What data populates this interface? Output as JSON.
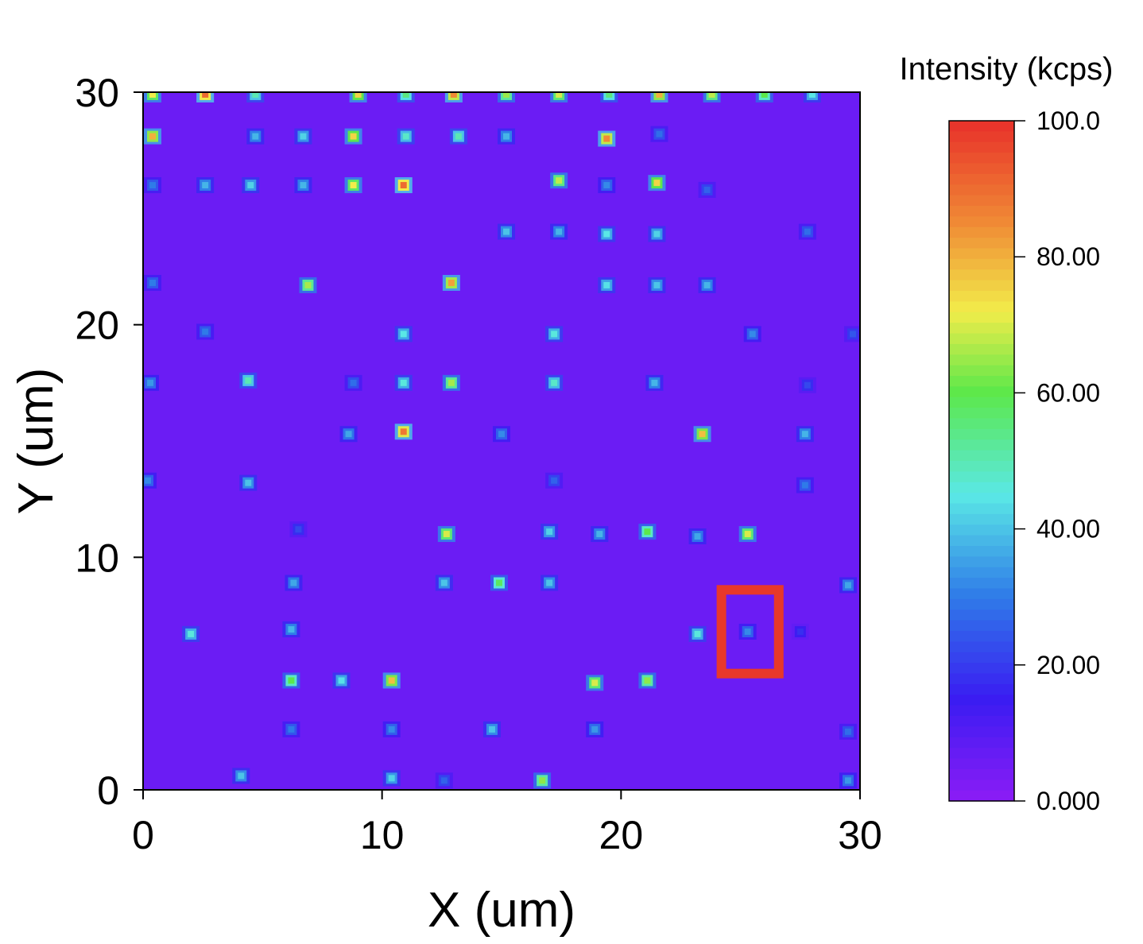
{
  "chart_data": {
    "type": "heatmap",
    "title": "",
    "xlabel": "X (um)",
    "ylabel": "Y (um)",
    "xlim": [
      0,
      30
    ],
    "ylim": [
      0,
      30
    ],
    "x_ticks": [
      0,
      10,
      20,
      30
    ],
    "y_ticks": [
      0,
      10,
      20,
      30
    ],
    "background_intensity": 6,
    "colorbar": {
      "label": "Intensity (kcps)",
      "range": [
        0,
        100
      ],
      "ticks": [
        {
          "value": 100,
          "label": "100.0"
        },
        {
          "value": 80,
          "label": "80.00"
        },
        {
          "value": 60,
          "label": "60.00"
        },
        {
          "value": 40,
          "label": "40.00"
        },
        {
          "value": 20,
          "label": "20.00"
        },
        {
          "value": 0,
          "label": "0.000"
        }
      ],
      "stops": [
        {
          "value": 0,
          "color": "#8c1cf5"
        },
        {
          "value": 15,
          "color": "#3a1cf2"
        },
        {
          "value": 30,
          "color": "#2f7be8"
        },
        {
          "value": 45,
          "color": "#5ae8e6"
        },
        {
          "value": 60,
          "color": "#5ce84a"
        },
        {
          "value": 72,
          "color": "#f2ec4a"
        },
        {
          "value": 85,
          "color": "#f08a35"
        },
        {
          "value": 100,
          "color": "#e8302a"
        }
      ]
    },
    "highlight_box": {
      "x": [
        24.2,
        26.6
      ],
      "y": [
        5.0,
        8.6
      ],
      "color": "#e8382a"
    },
    "spots": [
      {
        "x": 0.4,
        "y": 29.9,
        "v": 72
      },
      {
        "x": 2.6,
        "y": 29.9,
        "v": 90
      },
      {
        "x": 4.7,
        "y": 29.9,
        "v": 50
      },
      {
        "x": 9.0,
        "y": 29.9,
        "v": 75
      },
      {
        "x": 11.0,
        "y": 29.9,
        "v": 55
      },
      {
        "x": 13.0,
        "y": 29.9,
        "v": 85
      },
      {
        "x": 15.2,
        "y": 29.9,
        "v": 65
      },
      {
        "x": 17.4,
        "y": 29.9,
        "v": 70
      },
      {
        "x": 19.5,
        "y": 29.9,
        "v": 55
      },
      {
        "x": 21.6,
        "y": 29.9,
        "v": 80
      },
      {
        "x": 23.8,
        "y": 29.9,
        "v": 68
      },
      {
        "x": 26.0,
        "y": 29.9,
        "v": 60
      },
      {
        "x": 28.0,
        "y": 29.9,
        "v": 45
      },
      {
        "x": 0.4,
        "y": 28.1,
        "v": 80
      },
      {
        "x": 4.7,
        "y": 28.1,
        "v": 38
      },
      {
        "x": 6.7,
        "y": 28.1,
        "v": 42
      },
      {
        "x": 8.8,
        "y": 28.1,
        "v": 75
      },
      {
        "x": 11.0,
        "y": 28.1,
        "v": 48
      },
      {
        "x": 13.2,
        "y": 28.1,
        "v": 50
      },
      {
        "x": 15.2,
        "y": 28.1,
        "v": 38
      },
      {
        "x": 19.4,
        "y": 28.0,
        "v": 85
      },
      {
        "x": 21.6,
        "y": 28.2,
        "v": 28
      },
      {
        "x": 0.4,
        "y": 26.0,
        "v": 30
      },
      {
        "x": 2.6,
        "y": 26.0,
        "v": 38
      },
      {
        "x": 4.5,
        "y": 26.0,
        "v": 42
      },
      {
        "x": 6.7,
        "y": 26.0,
        "v": 38
      },
      {
        "x": 8.8,
        "y": 26.0,
        "v": 72
      },
      {
        "x": 10.9,
        "y": 26.0,
        "v": 90
      },
      {
        "x": 17.4,
        "y": 26.2,
        "v": 68
      },
      {
        "x": 19.4,
        "y": 26.0,
        "v": 32
      },
      {
        "x": 21.5,
        "y": 26.1,
        "v": 75
      },
      {
        "x": 23.6,
        "y": 25.8,
        "v": 26
      },
      {
        "x": 15.2,
        "y": 24.0,
        "v": 40
      },
      {
        "x": 17.4,
        "y": 24.0,
        "v": 38
      },
      {
        "x": 19.4,
        "y": 23.9,
        "v": 45
      },
      {
        "x": 21.5,
        "y": 23.9,
        "v": 42
      },
      {
        "x": 27.8,
        "y": 24.0,
        "v": 28
      },
      {
        "x": 0.4,
        "y": 21.8,
        "v": 30
      },
      {
        "x": 6.9,
        "y": 21.7,
        "v": 66
      },
      {
        "x": 12.9,
        "y": 21.8,
        "v": 82
      },
      {
        "x": 19.4,
        "y": 21.7,
        "v": 44
      },
      {
        "x": 21.5,
        "y": 21.7,
        "v": 40
      },
      {
        "x": 23.6,
        "y": 21.7,
        "v": 38
      },
      {
        "x": 2.6,
        "y": 19.7,
        "v": 30
      },
      {
        "x": 10.9,
        "y": 19.6,
        "v": 45
      },
      {
        "x": 17.2,
        "y": 19.6,
        "v": 46
      },
      {
        "x": 25.5,
        "y": 19.6,
        "v": 32
      },
      {
        "x": 29.7,
        "y": 19.6,
        "v": 24
      },
      {
        "x": 0.3,
        "y": 17.5,
        "v": 34
      },
      {
        "x": 4.4,
        "y": 17.6,
        "v": 50
      },
      {
        "x": 8.8,
        "y": 17.5,
        "v": 28
      },
      {
        "x": 10.9,
        "y": 17.5,
        "v": 46
      },
      {
        "x": 12.9,
        "y": 17.5,
        "v": 66
      },
      {
        "x": 17.2,
        "y": 17.5,
        "v": 48
      },
      {
        "x": 21.4,
        "y": 17.5,
        "v": 38
      },
      {
        "x": 27.8,
        "y": 17.4,
        "v": 22
      },
      {
        "x": 8.6,
        "y": 15.3,
        "v": 36
      },
      {
        "x": 10.9,
        "y": 15.4,
        "v": 88
      },
      {
        "x": 15.0,
        "y": 15.3,
        "v": 32
      },
      {
        "x": 23.4,
        "y": 15.3,
        "v": 78
      },
      {
        "x": 27.7,
        "y": 15.3,
        "v": 38
      },
      {
        "x": 0.2,
        "y": 13.3,
        "v": 32
      },
      {
        "x": 4.4,
        "y": 13.2,
        "v": 40
      },
      {
        "x": 17.2,
        "y": 13.3,
        "v": 26
      },
      {
        "x": 27.7,
        "y": 13.1,
        "v": 30
      },
      {
        "x": 6.5,
        "y": 11.2,
        "v": 22
      },
      {
        "x": 12.7,
        "y": 11.0,
        "v": 70
      },
      {
        "x": 17.0,
        "y": 11.1,
        "v": 42
      },
      {
        "x": 19.1,
        "y": 11.0,
        "v": 38
      },
      {
        "x": 21.1,
        "y": 11.1,
        "v": 60
      },
      {
        "x": 23.2,
        "y": 10.9,
        "v": 36
      },
      {
        "x": 25.3,
        "y": 11.0,
        "v": 70
      },
      {
        "x": 6.3,
        "y": 8.9,
        "v": 36
      },
      {
        "x": 12.6,
        "y": 8.9,
        "v": 40
      },
      {
        "x": 14.9,
        "y": 8.9,
        "v": 58
      },
      {
        "x": 17.0,
        "y": 8.9,
        "v": 40
      },
      {
        "x": 29.5,
        "y": 8.8,
        "v": 36
      },
      {
        "x": 2.0,
        "y": 6.7,
        "v": 46
      },
      {
        "x": 6.2,
        "y": 6.9,
        "v": 38
      },
      {
        "x": 23.2,
        "y": 6.7,
        "v": 46
      },
      {
        "x": 25.3,
        "y": 6.8,
        "v": 32
      },
      {
        "x": 27.5,
        "y": 6.8,
        "v": 18
      },
      {
        "x": 6.2,
        "y": 4.7,
        "v": 60
      },
      {
        "x": 8.3,
        "y": 4.7,
        "v": 44
      },
      {
        "x": 10.4,
        "y": 4.7,
        "v": 78
      },
      {
        "x": 18.9,
        "y": 4.6,
        "v": 70
      },
      {
        "x": 21.1,
        "y": 4.7,
        "v": 64
      },
      {
        "x": 6.2,
        "y": 2.6,
        "v": 30
      },
      {
        "x": 10.4,
        "y": 2.6,
        "v": 32
      },
      {
        "x": 14.6,
        "y": 2.6,
        "v": 40
      },
      {
        "x": 18.9,
        "y": 2.6,
        "v": 34
      },
      {
        "x": 29.5,
        "y": 2.5,
        "v": 28
      },
      {
        "x": 4.1,
        "y": 0.6,
        "v": 40
      },
      {
        "x": 10.4,
        "y": 0.5,
        "v": 42
      },
      {
        "x": 12.6,
        "y": 0.4,
        "v": 26
      },
      {
        "x": 16.7,
        "y": 0.4,
        "v": 64
      },
      {
        "x": 29.5,
        "y": 0.4,
        "v": 34
      }
    ]
  }
}
